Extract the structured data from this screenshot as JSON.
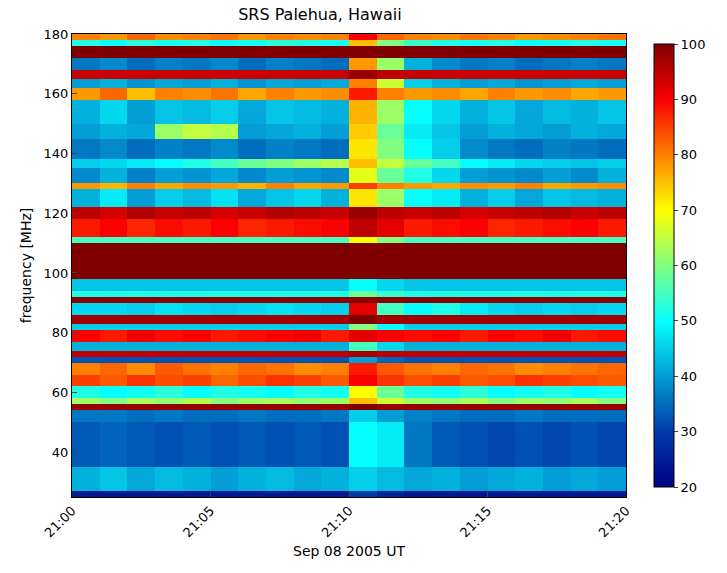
{
  "chart_data": {
    "type": "heatmap",
    "title": "SRS Palehua, Hawaii",
    "x_label": "Sep 08 2005 UT",
    "y_label": "frequency [MHz]",
    "color": "jet",
    "xlim": [
      "2005-09-08 21:00",
      "2005-09-08 21:20"
    ],
    "xticks": [
      {
        "value": "2005-09-08 21:00",
        "label": "21:00"
      },
      {
        "value": "2005-09-08 21:05",
        "label": "21:05"
      },
      {
        "value": "2005-09-08 21:10",
        "label": "21:10"
      },
      {
        "value": "2005-09-08 21:15",
        "label": "21:15"
      },
      {
        "value": "2005-09-08 21:20",
        "label": "21:20"
      }
    ],
    "ylim": [
      25,
      180
    ],
    "yticks": [
      40,
      60,
      80,
      100,
      120,
      140,
      160,
      180
    ],
    "zlim": [
      20,
      100
    ],
    "zticks": [
      20,
      30,
      40,
      50,
      60,
      70,
      80,
      90,
      100
    ],
    "x_bins": [
      "2005-09-08 21:00",
      "2005-09-08 21:01",
      "2005-09-08 21:02",
      "2005-09-08 21:03",
      "2005-09-08 21:04",
      "2005-09-08 21:05",
      "2005-09-08 21:06",
      "2005-09-08 21:07",
      "2005-09-08 21:08",
      "2005-09-08 21:09",
      "2005-09-08 21:10",
      "2005-09-08 21:11",
      "2005-09-08 21:12",
      "2005-09-08 21:13",
      "2005-09-08 21:14",
      "2005-09-08 21:15",
      "2005-09-08 21:16",
      "2005-09-08 21:17",
      "2005-09-08 21:18",
      "2005-09-08 21:19",
      "2005-09-08 21:20"
    ],
    "y_bins": [
      25,
      27,
      35,
      50,
      54,
      56,
      58,
      62,
      66,
      70,
      72,
      74,
      77,
      81,
      83,
      86,
      90,
      92,
      94,
      98,
      110,
      112,
      118,
      122,
      128,
      130,
      135,
      138,
      145,
      150,
      158,
      162,
      165,
      168,
      172,
      176,
      178,
      180
    ],
    "cells": [
      [
        24,
        24,
        24,
        24,
        24,
        24,
        24,
        24,
        24,
        24,
        30,
        26,
        24,
        24,
        24,
        24,
        24,
        24,
        24,
        24
      ],
      [
        42,
        44,
        41,
        43,
        42,
        40,
        42,
        43,
        41,
        42,
        45,
        43,
        41,
        42,
        40,
        41,
        42,
        40,
        41,
        40
      ],
      [
        33,
        34,
        33,
        32,
        33,
        32,
        33,
        32,
        33,
        32,
        50,
        48,
        36,
        33,
        32,
        31,
        32,
        31,
        32,
        31
      ],
      [
        36,
        36,
        35,
        36,
        35,
        35,
        36,
        35,
        35,
        36,
        45,
        40,
        37,
        36,
        35,
        35,
        36,
        35,
        35,
        35
      ],
      [
        98,
        98,
        98,
        98,
        98,
        98,
        98,
        98,
        98,
        98,
        100,
        98,
        98,
        98,
        98,
        98,
        98,
        98,
        98,
        98
      ],
      [
        62,
        60,
        63,
        61,
        64,
        60,
        62,
        63,
        61,
        62,
        75,
        66,
        62,
        61,
        63,
        60,
        62,
        61,
        63,
        60
      ],
      [
        52,
        50,
        51,
        53,
        50,
        52,
        51,
        50,
        52,
        51,
        70,
        58,
        52,
        51,
        53,
        50,
        51,
        52,
        50,
        51
      ],
      [
        85,
        83,
        86,
        84,
        85,
        82,
        84,
        86,
        85,
        83,
        90,
        86,
        84,
        85,
        83,
        84,
        86,
        85,
        84,
        83
      ],
      [
        80,
        82,
        79,
        83,
        81,
        80,
        82,
        81,
        79,
        80,
        88,
        83,
        81,
        80,
        82,
        81,
        79,
        80,
        81,
        82
      ],
      [
        32,
        32,
        32,
        32,
        32,
        32,
        32,
        32,
        32,
        32,
        40,
        34,
        32,
        32,
        32,
        32,
        32,
        32,
        32,
        32
      ],
      [
        95,
        95,
        95,
        95,
        95,
        95,
        95,
        95,
        95,
        95,
        97,
        95,
        95,
        95,
        95,
        95,
        95,
        95,
        95,
        95
      ],
      [
        42,
        42,
        42,
        42,
        42,
        42,
        42,
        42,
        42,
        42,
        55,
        46,
        42,
        42,
        42,
        42,
        42,
        42,
        42,
        42
      ],
      [
        90,
        88,
        91,
        89,
        90,
        88,
        89,
        90,
        91,
        88,
        92,
        90,
        89,
        90,
        88,
        90,
        89,
        91,
        88,
        89
      ],
      [
        45,
        45,
        45,
        45,
        45,
        45,
        45,
        45,
        45,
        45,
        60,
        50,
        45,
        45,
        45,
        45,
        45,
        45,
        45,
        45
      ],
      [
        97,
        97,
        97,
        97,
        97,
        97,
        97,
        97,
        97,
        97,
        100,
        97,
        97,
        97,
        97,
        97,
        97,
        97,
        97,
        97
      ],
      [
        46,
        46,
        45,
        47,
        46,
        45,
        46,
        47,
        46,
        45,
        92,
        55,
        50,
        52,
        48,
        46,
        45,
        46,
        45,
        46
      ],
      [
        99,
        99,
        99,
        99,
        99,
        99,
        99,
        99,
        99,
        99,
        99,
        99,
        99,
        99,
        99,
        99,
        99,
        99,
        99,
        99
      ],
      [
        52,
        52,
        52,
        52,
        52,
        52,
        52,
        52,
        52,
        52,
        58,
        54,
        52,
        52,
        52,
        52,
        52,
        52,
        52,
        52
      ],
      [
        44,
        44,
        44,
        44,
        44,
        44,
        44,
        44,
        44,
        44,
        50,
        46,
        44,
        44,
        44,
        44,
        44,
        44,
        44,
        44
      ],
      [
        100,
        100,
        100,
        100,
        100,
        100,
        100,
        100,
        100,
        100,
        100,
        100,
        100,
        100,
        100,
        100,
        100,
        100,
        100,
        100
      ],
      [
        55,
        55,
        55,
        55,
        55,
        55,
        55,
        55,
        55,
        55,
        70,
        60,
        55,
        55,
        55,
        55,
        55,
        55,
        55,
        55
      ],
      [
        88,
        90,
        87,
        89,
        88,
        90,
        87,
        88,
        89,
        90,
        95,
        92,
        88,
        89,
        90,
        87,
        88,
        89,
        90,
        88
      ],
      [
        95,
        93,
        96,
        94,
        95,
        93,
        94,
        96,
        95,
        94,
        98,
        95,
        94,
        95,
        93,
        94,
        95,
        96,
        94,
        95
      ],
      [
        42,
        48,
        40,
        45,
        43,
        47,
        41,
        44,
        46,
        42,
        72,
        62,
        50,
        48,
        42,
        45,
        41,
        44,
        43,
        42
      ],
      [
        78,
        76,
        80,
        77,
        79,
        78,
        76,
        80,
        77,
        78,
        85,
        80,
        78,
        77,
        79,
        78,
        80,
        77,
        78,
        79
      ],
      [
        38,
        42,
        37,
        40,
        39,
        41,
        38,
        40,
        39,
        38,
        68,
        58,
        52,
        46,
        40,
        39,
        38,
        40,
        38,
        42
      ],
      [
        45,
        46,
        48,
        50,
        52,
        55,
        58,
        60,
        62,
        64,
        75,
        65,
        58,
        55,
        50,
        48,
        46,
        45,
        44,
        45
      ],
      [
        36,
        38,
        35,
        37,
        36,
        38,
        35,
        37,
        36,
        35,
        72,
        60,
        50,
        45,
        38,
        36,
        35,
        37,
        36,
        35
      ],
      [
        40,
        42,
        41,
        62,
        65,
        64,
        40,
        41,
        42,
        40,
        74,
        58,
        48,
        44,
        40,
        42,
        41,
        40,
        42,
        41
      ],
      [
        42,
        46,
        40,
        44,
        43,
        45,
        41,
        44,
        43,
        42,
        76,
        62,
        50,
        46,
        42,
        44,
        41,
        43,
        42,
        44
      ],
      [
        78,
        82,
        75,
        80,
        79,
        81,
        77,
        80,
        78,
        79,
        88,
        80,
        78,
        79,
        77,
        80,
        78,
        79,
        77,
        78
      ],
      [
        40,
        42,
        39,
        41,
        40,
        42,
        39,
        41,
        40,
        41,
        80,
        66,
        45,
        42,
        40,
        41,
        39,
        40,
        41,
        40
      ],
      [
        94,
        94,
        94,
        94,
        94,
        94,
        94,
        94,
        94,
        94,
        98,
        95,
        94,
        94,
        94,
        94,
        94,
        94,
        94,
        94
      ],
      [
        36,
        38,
        35,
        37,
        36,
        38,
        35,
        37,
        36,
        35,
        78,
        62,
        42,
        38,
        36,
        37,
        35,
        36,
        37,
        36
      ],
      [
        100,
        100,
        100,
        100,
        100,
        100,
        100,
        100,
        100,
        100,
        100,
        100,
        100,
        100,
        100,
        100,
        100,
        100,
        100,
        100
      ],
      [
        52,
        50,
        53,
        51,
        52,
        50,
        51,
        53,
        52,
        51,
        75,
        60,
        54,
        52,
        51,
        52,
        50,
        51,
        52,
        51
      ],
      [
        80,
        78,
        82,
        79,
        80,
        81,
        78,
        80,
        79,
        80,
        90,
        82,
        80,
        79,
        81,
        80,
        78,
        79,
        80,
        81
      ]
    ]
  }
}
